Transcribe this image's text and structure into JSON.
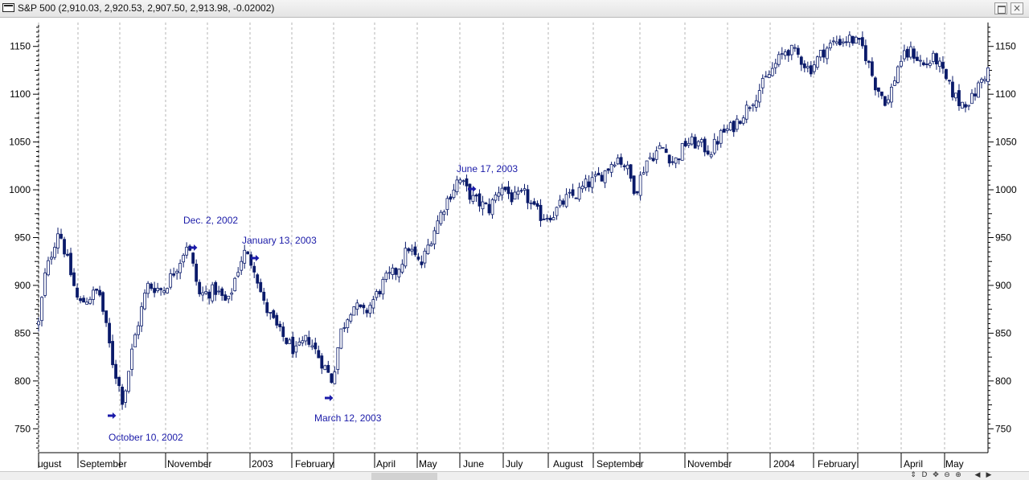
{
  "window": {
    "title": "S&P 500 (2,910.03, 2,920.53, 2,907.50, 2,913.98, -0.02002)",
    "restore_icon": "restore-icon",
    "close_label": "×"
  },
  "bottombar": {
    "controls": [
      "⇕",
      "D",
      "✥",
      "⊖",
      "⊕",
      "◀",
      "▶"
    ]
  },
  "chart_data": {
    "type": "candlestick",
    "title": "",
    "xlabel": "",
    "ylabel": "",
    "ylim": [
      725,
      1175
    ],
    "y_ticks": [
      750,
      800,
      850,
      900,
      950,
      1000,
      1050,
      1100,
      1150
    ],
    "grid": "vertical dashed lines at month boundaries",
    "bar_color": "#0a1a6a",
    "annotation_color": "#1a1aa8",
    "x_labels": [
      "ugust",
      "September",
      "November",
      "2003",
      "February",
      "April",
      "May",
      "June",
      "July",
      "August",
      "September",
      "November",
      "2004",
      "February",
      "April",
      "May"
    ],
    "anchors": [
      [
        0,
        860
      ],
      [
        8,
        910
      ],
      [
        25,
        960
      ],
      [
        50,
        880
      ],
      [
        75,
        895
      ],
      [
        92,
        820
      ],
      [
        105,
        778
      ],
      [
        118,
        840
      ],
      [
        135,
        900
      ],
      [
        155,
        895
      ],
      [
        175,
        925
      ],
      [
        185,
        945
      ],
      [
        200,
        890
      ],
      [
        220,
        895
      ],
      [
        235,
        880
      ],
      [
        245,
        910
      ],
      [
        255,
        935
      ],
      [
        268,
        920
      ],
      [
        280,
        880
      ],
      [
        300,
        850
      ],
      [
        320,
        830
      ],
      [
        335,
        845
      ],
      [
        352,
        820
      ],
      [
        365,
        800
      ],
      [
        375,
        850
      ],
      [
        390,
        880
      ],
      [
        405,
        870
      ],
      [
        420,
        890
      ],
      [
        430,
        905
      ],
      [
        445,
        915
      ],
      [
        460,
        940
      ],
      [
        475,
        920
      ],
      [
        490,
        955
      ],
      [
        505,
        985
      ],
      [
        522,
        1012
      ],
      [
        540,
        990
      ],
      [
        560,
        980
      ],
      [
        575,
        1005
      ],
      [
        590,
        990
      ],
      [
        605,
        995
      ],
      [
        615,
        980
      ],
      [
        625,
        972
      ],
      [
        640,
        975
      ],
      [
        655,
        990
      ],
      [
        668,
        995
      ],
      [
        680,
        1005
      ],
      [
        695,
        1012
      ],
      [
        705,
        1020
      ],
      [
        718,
        1035
      ],
      [
        730,
        1025
      ],
      [
        742,
        998
      ],
      [
        755,
        1030
      ],
      [
        775,
        1045
      ],
      [
        790,
        1028
      ],
      [
        805,
        1050
      ],
      [
        820,
        1048
      ],
      [
        835,
        1040
      ],
      [
        850,
        1060
      ],
      [
        862,
        1065
      ],
      [
        880,
        1085
      ],
      [
        900,
        1110
      ],
      [
        915,
        1130
      ],
      [
        930,
        1148
      ],
      [
        945,
        1140
      ],
      [
        958,
        1125
      ],
      [
        975,
        1145
      ],
      [
        990,
        1155
      ],
      [
        1010,
        1158
      ],
      [
        1025,
        1148
      ],
      [
        1040,
        1110
      ],
      [
        1055,
        1090
      ],
      [
        1070,
        1135
      ],
      [
        1085,
        1145
      ],
      [
        1100,
        1130
      ],
      [
        1115,
        1138
      ],
      [
        1130,
        1110
      ],
      [
        1145,
        1090
      ],
      [
        1160,
        1095
      ],
      [
        1172,
        1115
      ],
      [
        1180,
        1125
      ]
    ],
    "annotations": [
      {
        "label": "October 10, 2002",
        "anchor_bar": 105
      },
      {
        "label": "Dec. 2, 2002",
        "anchor_bar": 187
      },
      {
        "label": "January 13, 2003",
        "anchor_bar": 250
      },
      {
        "label": "March 12, 2003",
        "anchor_bar": 363
      },
      {
        "label": "June 17, 2003",
        "anchor_bar": 525
      }
    ]
  }
}
